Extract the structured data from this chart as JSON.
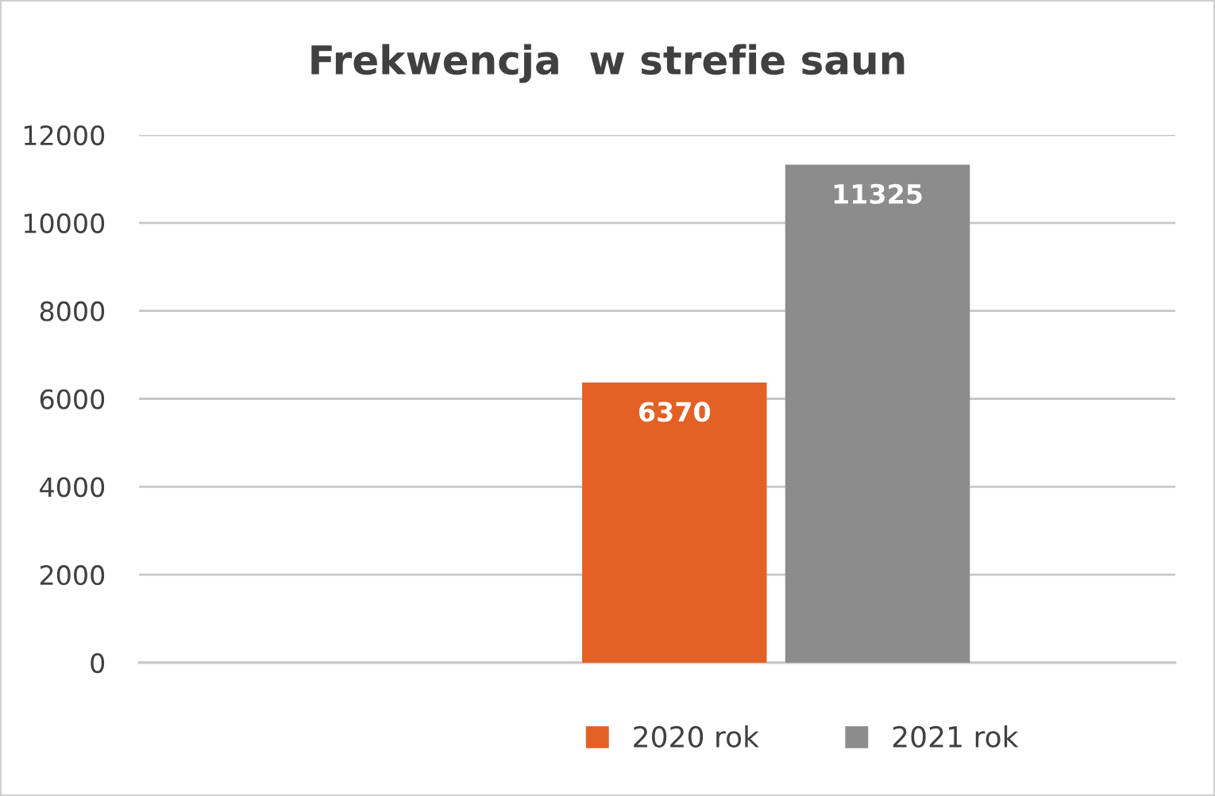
{
  "chart_data": {
    "type": "bar",
    "title": "Frekwencja  w strefie saun",
    "categories": [
      null
    ],
    "series": [
      {
        "name": "2020 rok",
        "color": "#e46125",
        "values": [
          6370
        ]
      },
      {
        "name": "2021 rok",
        "color": "#8c8c8c",
        "values": [
          11325
        ]
      }
    ],
    "ylim": [
      0,
      12000
    ],
    "yticks": [
      0,
      2000,
      4000,
      6000,
      8000,
      10000,
      12000
    ],
    "grid": "y",
    "legend": "bottom",
    "data_labels": true
  }
}
